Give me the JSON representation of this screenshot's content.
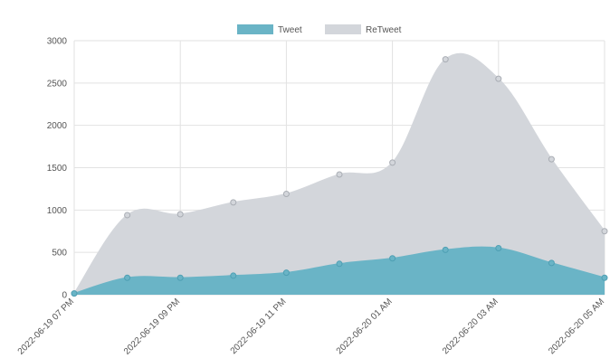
{
  "chart_data": {
    "type": "area",
    "stacked": false,
    "x": [
      "2022-06-19 07 PM",
      "",
      "2022-06-19 09 PM",
      "",
      "2022-06-19 11 PM",
      "",
      "2022-06-20 01 AM",
      "",
      "2022-06-20 03 AM",
      "",
      "2022-06-20 05 AM"
    ],
    "series": [
      {
        "name": "Tweet",
        "color": "#6ab4c6",
        "values": [
          15,
          200,
          200,
          225,
          260,
          365,
          430,
          530,
          550,
          375,
          200
        ]
      },
      {
        "name": "ReTweet",
        "color": "#d3d6db",
        "values": [
          15,
          940,
          950,
          1090,
          1190,
          1420,
          1560,
          2780,
          2550,
          1600,
          750
        ]
      }
    ],
    "ylim": [
      0,
      3000
    ],
    "yticks": [
      "0",
      "500",
      "1000",
      "1500",
      "2000",
      "2500",
      "3000"
    ],
    "grid": true,
    "legend": "top-center",
    "title": "",
    "xlabel": "",
    "ylabel": ""
  }
}
